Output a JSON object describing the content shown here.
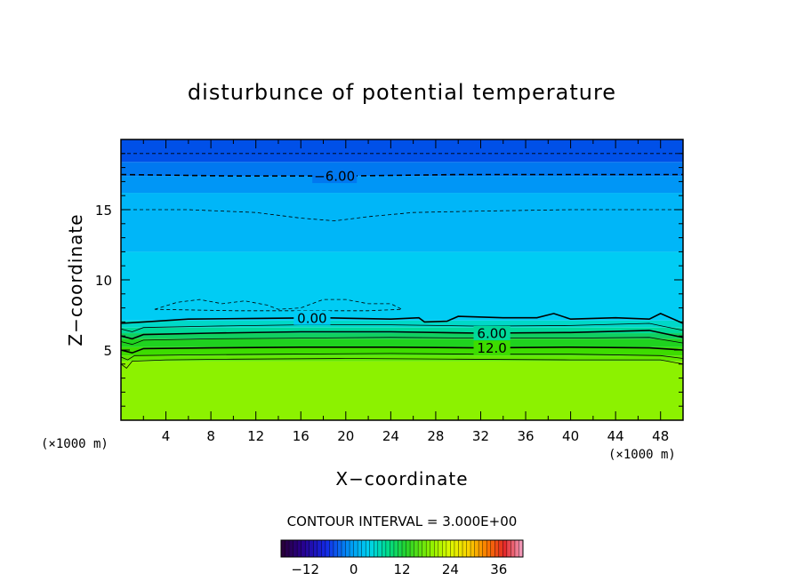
{
  "chart_data": {
    "type": "heatmap",
    "title": "disturbunce of potential temperature",
    "xlabel": "X−coordinate",
    "ylabel": "Z−coordinate",
    "x_unit": "(×1000 m)",
    "y_unit": "(×1000 m)",
    "xlim": [
      0,
      50
    ],
    "ylim": [
      0,
      20
    ],
    "x_ticks": [
      4,
      8,
      12,
      16,
      20,
      24,
      28,
      32,
      36,
      40,
      44,
      48
    ],
    "x_tick_labels": [
      "4",
      "8",
      "12",
      "16",
      "20",
      "24",
      "28",
      "32",
      "36",
      "40",
      "44",
      "48"
    ],
    "y_ticks": [
      5,
      10,
      15
    ],
    "y_tick_labels": [
      "5",
      "10",
      "15"
    ],
    "contour_interval_text": "CONTOUR INTERVAL = 3.000E+00",
    "contour_interval": 3.0,
    "colorbar": {
      "min": -18,
      "max": 42,
      "ticks": [
        -12,
        0,
        12,
        24,
        36
      ],
      "tick_labels": [
        "−12",
        "0",
        "12",
        "24",
        "36"
      ]
    },
    "field_layers": [
      {
        "z_bottom": 0.0,
        "z_top": 4.2,
        "value": 21,
        "color": "#8cf200"
      },
      {
        "z_bottom": 4.2,
        "z_top": 4.6,
        "value": 18,
        "color": "#62e800"
      },
      {
        "z_bottom": 4.6,
        "z_top": 5.2,
        "value": 15,
        "color": "#3ddc00"
      },
      {
        "z_bottom": 5.2,
        "z_top": 5.8,
        "value": 12,
        "color": "#1fd21f"
      },
      {
        "z_bottom": 5.8,
        "z_top": 6.2,
        "value": 9,
        "color": "#10d060"
      },
      {
        "z_bottom": 6.2,
        "z_top": 6.6,
        "value": 6,
        "color": "#00d89a"
      },
      {
        "z_bottom": 6.6,
        "z_top": 7.1,
        "value": 3,
        "color": "#00d8c8"
      },
      {
        "z_bottom": 7.1,
        "z_top": 12.0,
        "value": 0,
        "color": "#00ccf4"
      },
      {
        "z_bottom": 12.0,
        "z_top": 16.2,
        "value": -3,
        "color": "#00b6f8"
      },
      {
        "z_bottom": 16.2,
        "z_top": 17.4,
        "value": -6,
        "color": "#0096f6"
      },
      {
        "z_bottom": 17.4,
        "z_top": 18.4,
        "value": -9,
        "color": "#0078f0"
      },
      {
        "z_bottom": 18.4,
        "z_top": 20.0,
        "value": -12,
        "color": "#0050e8"
      }
    ],
    "contours": [
      {
        "value": 21,
        "label": "",
        "dashed": false,
        "points": [
          [
            0,
            4.0
          ],
          [
            0.5,
            3.7
          ],
          [
            1,
            4.2
          ],
          [
            4,
            4.3
          ],
          [
            10,
            4.35
          ],
          [
            20,
            4.4
          ],
          [
            30,
            4.35
          ],
          [
            40,
            4.3
          ],
          [
            48,
            4.3
          ],
          [
            50,
            4.0
          ]
        ]
      },
      {
        "value": 18,
        "label": "",
        "dashed": false,
        "points": [
          [
            0,
            4.5
          ],
          [
            0.6,
            4.3
          ],
          [
            1.2,
            4.6
          ],
          [
            6,
            4.65
          ],
          [
            14,
            4.7
          ],
          [
            24,
            4.75
          ],
          [
            32,
            4.7
          ],
          [
            40,
            4.7
          ],
          [
            48,
            4.6
          ],
          [
            50,
            4.4
          ]
        ]
      },
      {
        "value": 12,
        "label": "12.0",
        "label_x": 33,
        "dashed": false,
        "bold": true,
        "points": [
          [
            0,
            5.0
          ],
          [
            1,
            4.8
          ],
          [
            2,
            5.1
          ],
          [
            8,
            5.15
          ],
          [
            16,
            5.2
          ],
          [
            24,
            5.2
          ],
          [
            32,
            5.15
          ],
          [
            40,
            5.2
          ],
          [
            47,
            5.15
          ],
          [
            50,
            5.0
          ]
        ]
      },
      {
        "value": 9,
        "label": "",
        "dashed": false,
        "points": [
          [
            0,
            5.6
          ],
          [
            1,
            5.4
          ],
          [
            2,
            5.7
          ],
          [
            8,
            5.8
          ],
          [
            16,
            5.85
          ],
          [
            24,
            5.9
          ],
          [
            32,
            5.85
          ],
          [
            40,
            5.85
          ],
          [
            47,
            5.9
          ],
          [
            50,
            5.5
          ]
        ]
      },
      {
        "value": 6,
        "label": "6.00",
        "label_x": 33,
        "dashed": false,
        "bold": true,
        "points": [
          [
            0,
            6.0
          ],
          [
            1,
            5.8
          ],
          [
            2,
            6.1
          ],
          [
            8,
            6.2
          ],
          [
            16,
            6.3
          ],
          [
            24,
            6.3
          ],
          [
            32,
            6.2
          ],
          [
            40,
            6.25
          ],
          [
            47,
            6.4
          ],
          [
            50,
            5.9
          ]
        ]
      },
      {
        "value": 3,
        "label": "",
        "dashed": false,
        "points": [
          [
            0,
            6.5
          ],
          [
            1,
            6.3
          ],
          [
            2,
            6.6
          ],
          [
            8,
            6.7
          ],
          [
            16,
            6.8
          ],
          [
            24,
            6.8
          ],
          [
            32,
            6.7
          ],
          [
            40,
            6.75
          ],
          [
            47,
            6.9
          ],
          [
            50,
            6.4
          ]
        ]
      },
      {
        "value": 0,
        "label": "0.00",
        "label_x": 17,
        "dashed": false,
        "bold": true,
        "points": [
          [
            0,
            6.9
          ],
          [
            2,
            7.0
          ],
          [
            6,
            7.2
          ],
          [
            12,
            7.25
          ],
          [
            18,
            7.3
          ],
          [
            24,
            7.2
          ],
          [
            26.5,
            7.3
          ],
          [
            27,
            7.0
          ],
          [
            29,
            7.05
          ],
          [
            30,
            7.4
          ],
          [
            34,
            7.3
          ],
          [
            37,
            7.3
          ],
          [
            38.5,
            7.6
          ],
          [
            40,
            7.2
          ],
          [
            44,
            7.3
          ],
          [
            47,
            7.2
          ],
          [
            48,
            7.6
          ],
          [
            50,
            6.9
          ]
        ]
      },
      {
        "value": -3,
        "label": "",
        "dashed": true,
        "points": [
          [
            3,
            7.9
          ],
          [
            5,
            8.4
          ],
          [
            7,
            8.6
          ],
          [
            9,
            8.3
          ],
          [
            11,
            8.5
          ],
          [
            13,
            8.2
          ],
          [
            14,
            7.9
          ],
          [
            16,
            8.0
          ],
          [
            18,
            8.6
          ],
          [
            20,
            8.6
          ],
          [
            22,
            8.3
          ],
          [
            24,
            8.3
          ],
          [
            25,
            7.9
          ],
          [
            22,
            7.8
          ],
          [
            16,
            7.8
          ],
          [
            10,
            7.8
          ],
          [
            3,
            7.9
          ]
        ]
      },
      {
        "value": -3,
        "label": "",
        "dashed": true,
        "points": [
          [
            0,
            15.0
          ],
          [
            6,
            15.0
          ],
          [
            12,
            14.8
          ],
          [
            16,
            14.4
          ],
          [
            19,
            14.2
          ],
          [
            22,
            14.5
          ],
          [
            26,
            14.8
          ],
          [
            32,
            14.9
          ],
          [
            40,
            15.0
          ],
          [
            50,
            15.0
          ]
        ]
      },
      {
        "value": -6,
        "label": "−6.00",
        "label_x": 19,
        "dashed": true,
        "bold": true,
        "points": [
          [
            0,
            17.5
          ],
          [
            10,
            17.4
          ],
          [
            20,
            17.4
          ],
          [
            30,
            17.5
          ],
          [
            40,
            17.5
          ],
          [
            50,
            17.5
          ]
        ]
      },
      {
        "value": -9,
        "label": "",
        "dashed": true,
        "points": [
          [
            0,
            19.0
          ],
          [
            12,
            19.0
          ],
          [
            25,
            19.0
          ],
          [
            38,
            19.0
          ],
          [
            50,
            19.0
          ]
        ]
      }
    ]
  }
}
